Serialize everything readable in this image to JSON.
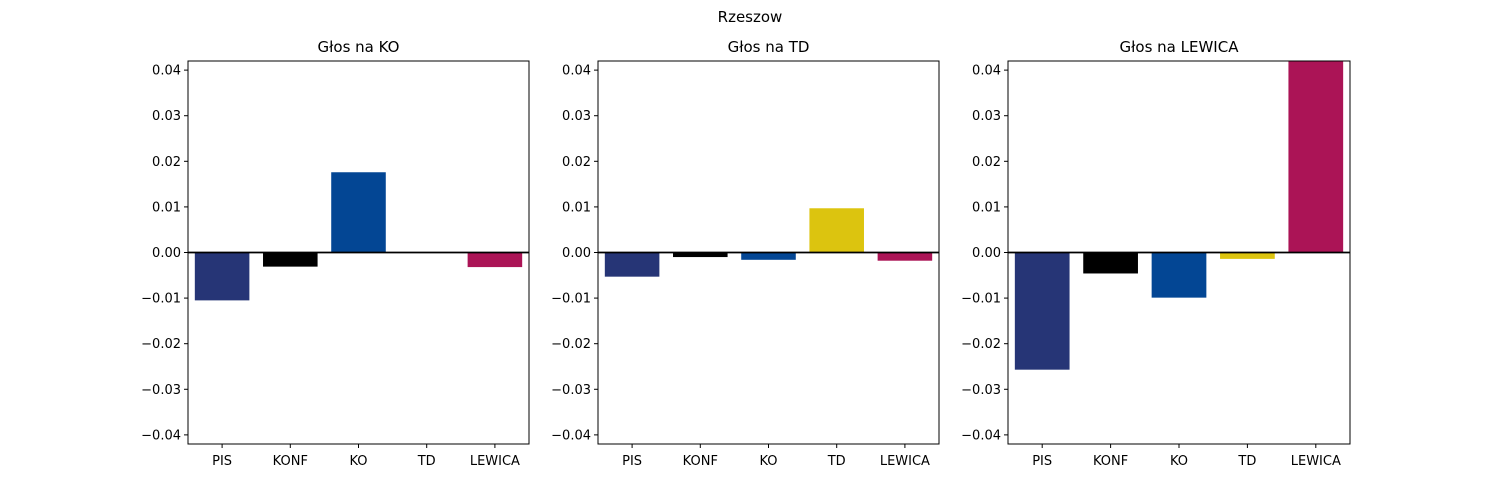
{
  "figure_title": "Rzeszow",
  "chart_data": [
    {
      "type": "bar",
      "title": "Głos na KO",
      "categories": [
        "PIS",
        "KONF",
        "KO",
        "TD",
        "LEWICA"
      ],
      "values": [
        -0.0105,
        -0.0031,
        0.0176,
        0.0,
        -0.0032
      ],
      "ylim": [
        -0.042,
        0.042
      ],
      "yticks": [
        "-0.04",
        "-0.03",
        "-0.02",
        "-0.01",
        "0.00",
        "0.01",
        "0.02",
        "0.03",
        "0.04"
      ],
      "xlabel": "",
      "ylabel": ""
    },
    {
      "type": "bar",
      "title": "Głos na TD",
      "categories": [
        "PIS",
        "KONF",
        "KO",
        "TD",
        "LEWICA"
      ],
      "values": [
        -0.0053,
        -0.001,
        -0.0016,
        0.0097,
        -0.0018
      ],
      "ylim": [
        -0.042,
        0.042
      ],
      "yticks": [
        "-0.04",
        "-0.03",
        "-0.02",
        "-0.01",
        "0.00",
        "0.01",
        "0.02",
        "0.03",
        "0.04"
      ],
      "xlabel": "",
      "ylabel": ""
    },
    {
      "type": "bar",
      "title": "Głos na LEWICA",
      "categories": [
        "PIS",
        "KONF",
        "KO",
        "TD",
        "LEWICA"
      ],
      "values": [
        -0.0257,
        -0.0046,
        -0.0099,
        -0.0014,
        0.042
      ],
      "ylim": [
        -0.042,
        0.042
      ],
      "yticks": [
        "-0.04",
        "-0.03",
        "-0.02",
        "-0.01",
        "0.00",
        "0.01",
        "0.02",
        "0.03",
        "0.04"
      ],
      "xlabel": "",
      "ylabel": ""
    }
  ],
  "colors": {
    "PIS": "#263576",
    "KONF": "#000000",
    "KO": "#034694",
    "TD": "#dcc40f",
    "LEWICA": "#ab1456"
  }
}
